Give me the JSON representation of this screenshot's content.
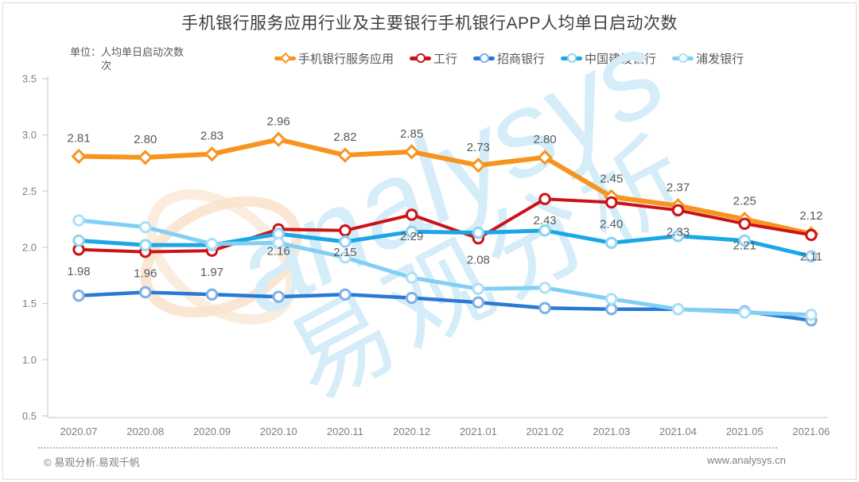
{
  "title": "手机银行服务应用行业及主要银行手机银行APP人均单日启动次数",
  "unit": {
    "label": "单位：",
    "line1": "人均单日启动次数",
    "line2": "次"
  },
  "footer": {
    "left": "© 易观分析.易观千帆",
    "right": "www.analysys.cn"
  },
  "watermark": {
    "latin": "analysys",
    "cjk": "易观分析",
    "text_color": "#D5EDF9",
    "swirl_color": "#F9E3CD"
  },
  "colors": {
    "axis": "#C6C6C6",
    "tick_label": "#7F7F7F",
    "data_label": "#595959",
    "title": "#3F3F3F"
  },
  "chart_data": {
    "type": "line",
    "categories": [
      "2020.07",
      "2020.08",
      "2020.09",
      "2020.10",
      "2020.11",
      "2020.12",
      "2021.01",
      "2021.02",
      "2021.03",
      "2021.04",
      "2021.05",
      "2021.06"
    ],
    "series": [
      {
        "name": "手机银行服务应用",
        "color": "#F7941E",
        "marker": "diamond",
        "marker_stroke": "#F7941E",
        "line_width": 6,
        "values": [
          2.81,
          2.8,
          2.83,
          2.96,
          2.82,
          2.85,
          2.73,
          2.8,
          2.45,
          2.37,
          2.25,
          2.12
        ],
        "labels": true,
        "label_position": "above"
      },
      {
        "name": "工行",
        "color": "#CD1217",
        "marker": "circle",
        "marker_stroke": "#CD1217",
        "line_width": 4,
        "values": [
          1.98,
          1.96,
          1.97,
          2.16,
          2.15,
          2.29,
          2.08,
          2.43,
          2.4,
          2.33,
          2.21,
          2.11
        ],
        "labels": true,
        "label_position": "below"
      },
      {
        "name": "招商银行",
        "color": "#2A79D4",
        "marker": "circle",
        "marker_stroke": "#7FB0E8",
        "line_width": 4.5,
        "values": [
          1.57,
          1.6,
          1.58,
          1.56,
          1.58,
          1.55,
          1.51,
          1.46,
          1.45,
          1.45,
          1.43,
          1.35
        ],
        "labels": false,
        "label_position": "none"
      },
      {
        "name": "中国建设银行",
        "color": "#1BA6E6",
        "marker": "circle",
        "marker_stroke": "#8ED4F2",
        "line_width": 5,
        "values": [
          2.06,
          2.02,
          2.02,
          2.12,
          2.05,
          2.14,
          2.13,
          2.15,
          2.04,
          2.1,
          2.06,
          1.92
        ],
        "labels": false,
        "label_position": "none"
      },
      {
        "name": "浦发银行",
        "color": "#82CFF4",
        "marker": "circle",
        "marker_stroke": "#ADDFF8",
        "line_width": 5,
        "values": [
          2.24,
          2.18,
          2.03,
          2.04,
          1.91,
          1.73,
          1.63,
          1.64,
          1.54,
          1.45,
          1.42,
          1.4
        ],
        "labels": false,
        "label_position": "none"
      }
    ],
    "ylabel": "人均单日启动次数(次)",
    "xlabel": "",
    "ylim": [
      0.5,
      3.5
    ],
    "yticks": [
      3.5,
      3.0,
      2.5,
      2.0,
      1.5,
      1.0,
      0.5
    ],
    "grid": false,
    "legend_position": "top"
  }
}
